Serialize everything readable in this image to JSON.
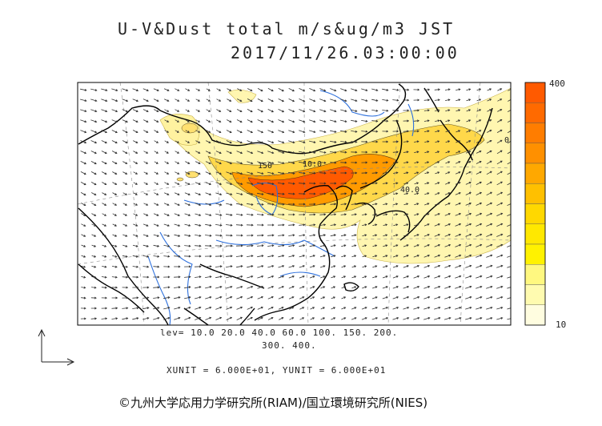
{
  "title": {
    "line1": "U-V&Dust total m/s&ug/m3 JST",
    "line2": "2017/11/26.03:00:00"
  },
  "legend": {
    "levels_line1": "lev= 10.0 20.0 40.0 60.0 100. 150. 200.",
    "levels_line2": "300. 400.",
    "units": "XUNIT = 6.000E+01, YUNIT = 6.000E+01"
  },
  "colorbar": {
    "max_label": "400",
    "min_label": "10",
    "colors": [
      "#ff5a00",
      "#ff6a00",
      "#ff7d00",
      "#ff9000",
      "#ffa800",
      "#ffc000",
      "#ffd800",
      "#ffe800",
      "#fff200",
      "#fff880",
      "#fffbb0",
      "#fffde0"
    ]
  },
  "contour_labels": [
    "150",
    "10.0",
    "40.0",
    "0"
  ],
  "copyright": "©九州大学応用力学研究所(RIAM)/国立環境研究所(NIES)",
  "colors": {
    "high": "#ff5a00",
    "mid": "#ffb000",
    "low": "#fff6a0",
    "coast": "#000000",
    "river": "#2c6fdc"
  }
}
